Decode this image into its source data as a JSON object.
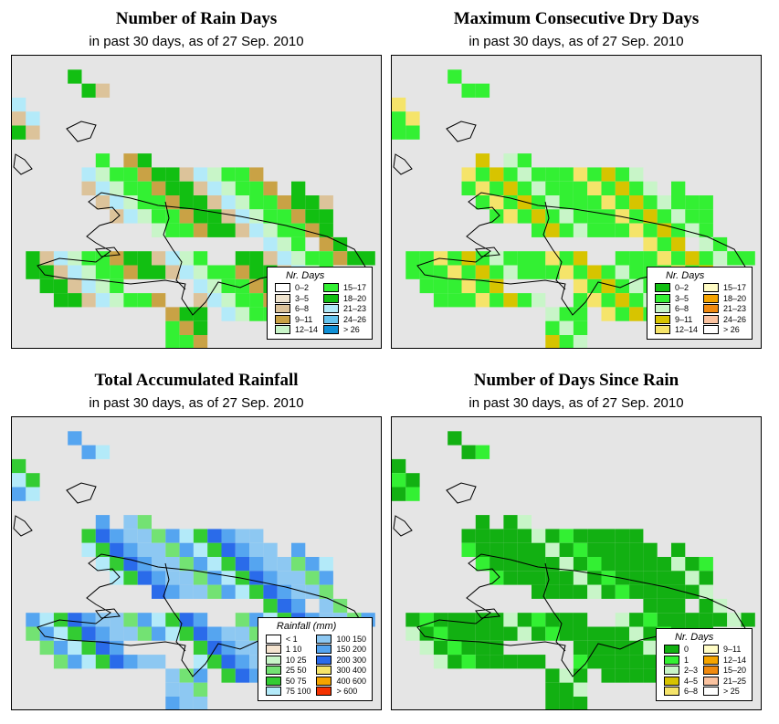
{
  "panels": [
    {
      "id": "rain-days",
      "title": "Number of Rain Days",
      "subtitle": "in past 30 days, as of  27 Sep. 2010",
      "legend": {
        "title": "Nr. Days",
        "items": [
          {
            "label": "0–2",
            "color": "#ffffff"
          },
          {
            "label": "3–5",
            "color": "#efe4cf"
          },
          {
            "label": "6–8",
            "color": "#dcc39a"
          },
          {
            "label": "9–11",
            "color": "#c9a245"
          },
          {
            "label": "12–14",
            "color": "#c8f5c8"
          },
          {
            "label": "15–17",
            "color": "#33f033"
          },
          {
            "label": "18–20",
            "color": "#12bf12"
          },
          {
            "label": "21–23",
            "color": "#b3eaf9"
          },
          {
            "label": "24–26",
            "color": "#65c4ee"
          },
          {
            "label": "> 26",
            "color": "#0f90d6"
          }
        ]
      }
    },
    {
      "id": "max-dry",
      "title": "Maximum Consecutive Dry Days",
      "subtitle": "in past 30 days, as of  27 Sep. 2010",
      "legend": {
        "title": "Nr. Days",
        "items": [
          {
            "label": "0–2",
            "color": "#12bf12"
          },
          {
            "label": "3–5",
            "color": "#33f033"
          },
          {
            "label": "6–8",
            "color": "#c8f5c8"
          },
          {
            "label": "9–11",
            "color": "#d7c400"
          },
          {
            "label": "12–14",
            "color": "#f5e46a"
          },
          {
            "label": "15–17",
            "color": "#fffcc5"
          },
          {
            "label": "18–20",
            "color": "#f5a400"
          },
          {
            "label": "21–23",
            "color": "#f08a10"
          },
          {
            "label": "24–26",
            "color": "#fbc3a0"
          },
          {
            "label": "> 26",
            "color": "#ffffff"
          }
        ]
      }
    },
    {
      "id": "total-rain",
      "title": "Total Accumulated Rainfall",
      "subtitle": "in past 30 days, as of  27 Sep. 2010",
      "legend": {
        "title": "Rainfall (mm)",
        "items": [
          {
            "label": "< 1",
            "color": "#ffffff"
          },
          {
            "label": "1   10",
            "color": "#f5e4d0"
          },
          {
            "label": "10   25",
            "color": "#c8f5c8"
          },
          {
            "label": "25   50",
            "color": "#73e273"
          },
          {
            "label": "50   75",
            "color": "#33cc33"
          },
          {
            "label": "75   100",
            "color": "#b3eaf9"
          },
          {
            "label": "100   150",
            "color": "#8dc8f2"
          },
          {
            "label": "150   200",
            "color": "#55a5f0"
          },
          {
            "label": "200   300",
            "color": "#2a6bea"
          },
          {
            "label": "300   400",
            "color": "#f5e46a"
          },
          {
            "label": "400   600",
            "color": "#f5a400"
          },
          {
            "label": "> 600",
            "color": "#f53200"
          }
        ]
      }
    },
    {
      "id": "days-since",
      "title": "Number of Days Since Rain",
      "subtitle": "in past 30 days, as of  27 Sep. 2010",
      "legend": {
        "title": "Nr. Days",
        "items": [
          {
            "label": "0",
            "color": "#12b012"
          },
          {
            "label": "1",
            "color": "#33f033"
          },
          {
            "label": "2–3",
            "color": "#c8f5c8"
          },
          {
            "label": "4–5",
            "color": "#d7c400"
          },
          {
            "label": "6–8",
            "color": "#f5e46a"
          },
          {
            "label": "9–11",
            "color": "#fffcc5"
          },
          {
            "label": "12–14",
            "color": "#f5a400"
          },
          {
            "label": "15–20",
            "color": "#f08a10"
          },
          {
            "label": "21–25",
            "color": "#fbc3a0"
          },
          {
            "label": "> 25",
            "color": "#ffffff"
          }
        ]
      }
    }
  ]
}
